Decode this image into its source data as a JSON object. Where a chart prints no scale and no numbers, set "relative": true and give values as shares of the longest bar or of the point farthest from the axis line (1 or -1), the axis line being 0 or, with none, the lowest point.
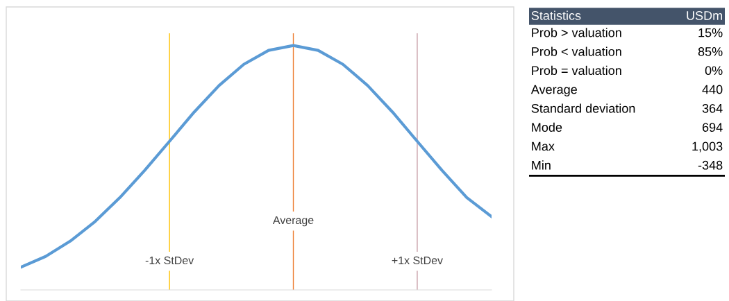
{
  "chart_data": [
    {
      "type": "line",
      "relative": true,
      "categories": [
        null,
        null,
        null,
        null,
        null,
        null,
        "-1x StDev",
        null,
        null,
        null,
        null,
        "Average",
        null,
        null,
        null,
        null,
        "+1x StDev",
        null,
        null,
        null
      ],
      "series": [
        {
          "color": "#5b9bd5",
          "values": [
            0.093,
            0.137,
            0.2,
            0.28,
            0.378,
            0.489,
            0.608,
            0.728,
            0.836,
            0.923,
            0.98,
            1.0,
            0.98,
            0.923,
            0.836,
            0.728,
            0.608,
            0.489,
            0.378,
            0.3
          ]
        }
      ],
      "ref_lines": [
        {
          "axis": "x",
          "value": "-1x StDev",
          "color": "#ffc000"
        },
        {
          "axis": "x",
          "value": "Average",
          "color": "#ed7d31"
        },
        {
          "axis": "x",
          "value": "+1x StDev",
          "color": "#c9a0a8"
        }
      ]
    },
    {
      "type": "other",
      "annotations": [
        "Statistics",
        "USDm"
      ],
      "categories": [
        "Prob > valuation",
        "Prob < valuation",
        "Prob = valuation",
        "Average",
        "Standard deviation",
        "Mode",
        "Max",
        "Min"
      ],
      "value_labels": [
        "15%",
        "85%",
        "0%",
        "440",
        "364",
        "694",
        "1,003",
        "-348"
      ]
    }
  ]
}
